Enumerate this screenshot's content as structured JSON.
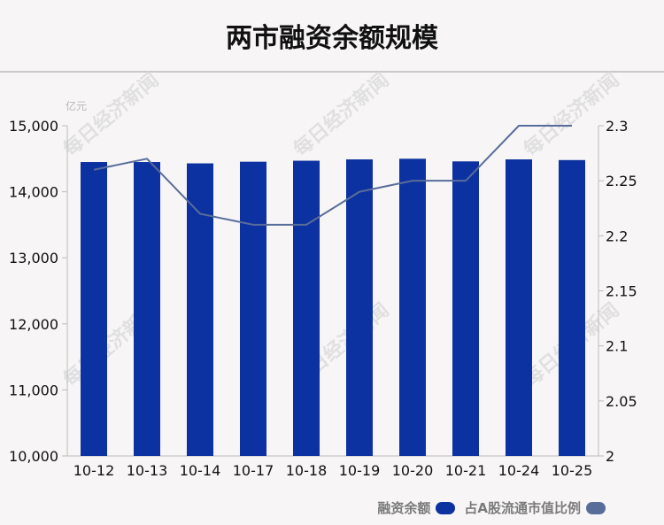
{
  "title": "两市融资余额规模",
  "colors": {
    "bar": "#0c31a0",
    "line": "#596d9a",
    "axis": "#bdbdbd"
  },
  "watermark": "每日经济新闻",
  "chart_data": {
    "type": "bar",
    "title": "两市融资余额规模",
    "categories": [
      "10-12",
      "10-13",
      "10-14",
      "10-17",
      "10-18",
      "10-19",
      "10-20",
      "10-21",
      "10-24",
      "10-25"
    ],
    "y_left": {
      "unit": "亿元",
      "lim": [
        10000,
        15000
      ],
      "ticks": [
        10000,
        11000,
        12000,
        13000,
        14000,
        15000
      ],
      "tick_labels": [
        "10,000",
        "11,000",
        "12,000",
        "13,000",
        "14,000",
        "15,000"
      ]
    },
    "y_right": {
      "lim": [
        2,
        2.3
      ],
      "ticks": [
        2,
        2.05,
        2.1,
        2.15,
        2.2,
        2.25,
        2.3
      ],
      "tick_labels": [
        "2",
        "2.05",
        "2.1",
        "2.15",
        "2.2",
        "2.25",
        "2.3"
      ]
    },
    "series": [
      {
        "name": "融资余额",
        "type": "bar",
        "axis": "left",
        "values": [
          14450,
          14450,
          14430,
          14455,
          14470,
          14490,
          14500,
          14460,
          14490,
          14480
        ]
      },
      {
        "name": "占A股流通市值比例",
        "type": "line",
        "axis": "right",
        "values": [
          2.26,
          2.27,
          2.22,
          2.21,
          2.21,
          2.24,
          2.25,
          2.25,
          2.3,
          2.3
        ]
      }
    ],
    "legend": "bottom-right",
    "grid": false
  }
}
